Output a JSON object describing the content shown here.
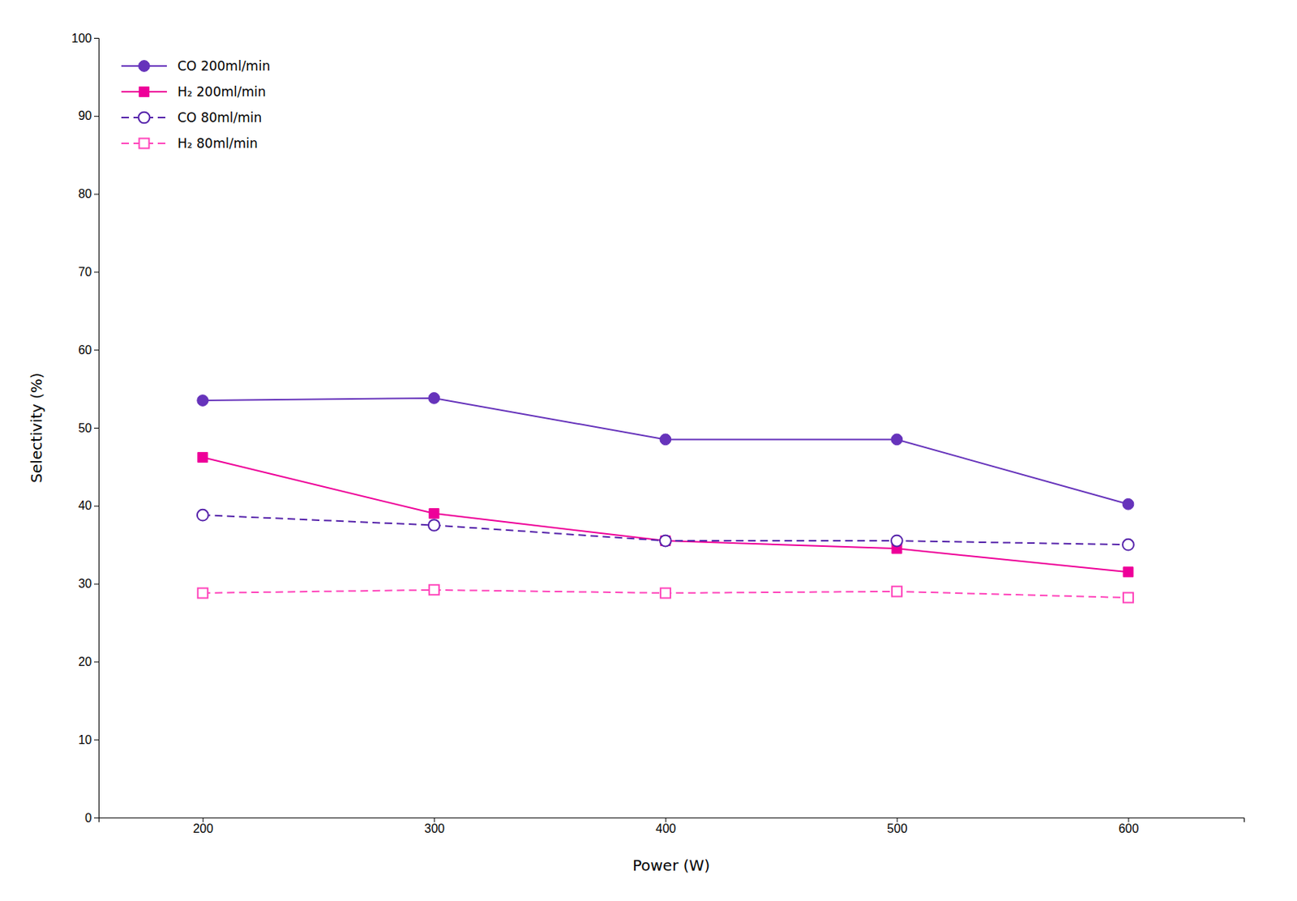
{
  "chart_data": {
    "type": "line",
    "xlabel": "Power (W)",
    "ylabel": "Selectivity (%)",
    "x": [
      200,
      300,
      400,
      500,
      600
    ],
    "series": [
      {
        "name": "CO 200ml/min",
        "color": "#6633BB",
        "marker": "circle",
        "line_style": "solid",
        "values": [
          53.5,
          53.8,
          48.5,
          48.5,
          40.2
        ]
      },
      {
        "name": "H₂ 200ml/min",
        "color": "#EE0099",
        "marker": "square",
        "line_style": "solid",
        "values": [
          46.2,
          39.0,
          35.5,
          34.5,
          31.5
        ]
      },
      {
        "name": "CO 80ml/min",
        "color": "#5522AA",
        "marker": "circle-open",
        "line_style": "dashed",
        "values": [
          38.8,
          37.5,
          35.5,
          35.5,
          35.0
        ]
      },
      {
        "name": "H₂ 80ml/min",
        "color": "#FF44BB",
        "marker": "square-open",
        "line_style": "dashed",
        "values": [
          28.8,
          29.2,
          28.8,
          29.0,
          28.2
        ]
      }
    ],
    "xlim": [
      155,
      650
    ],
    "xticks": [
      200,
      300,
      400,
      500,
      600
    ],
    "ylim": [
      0,
      100
    ],
    "yticks": [
      0,
      10,
      20,
      30,
      40,
      50,
      60,
      70,
      80,
      90,
      100
    ],
    "legend": "upper left",
    "grid": false
  }
}
